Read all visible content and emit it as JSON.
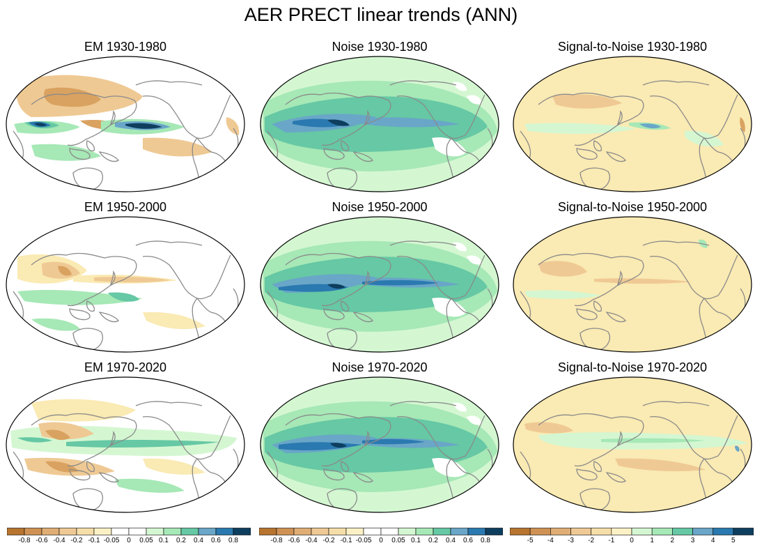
{
  "title": "AER PRECT linear trends (ANN)",
  "panels": [
    {
      "title": "EM 1930-1980",
      "kind": "em",
      "period": "1930-1980"
    },
    {
      "title": "Noise 1930-1980",
      "kind": "noise",
      "period": "1930-1980"
    },
    {
      "title": "Signal-to-Noise 1930-1980",
      "kind": "snr",
      "period": "1930-1980"
    },
    {
      "title": "EM 1950-2000",
      "kind": "em",
      "period": "1950-2000"
    },
    {
      "title": "Noise 1950-2000",
      "kind": "noise",
      "period": "1950-2000"
    },
    {
      "title": "Signal-to-Noise 1950-2000",
      "kind": "snr",
      "period": "1950-2000"
    },
    {
      "title": "EM 1970-2020",
      "kind": "em",
      "period": "1970-2020"
    },
    {
      "title": "Noise 1970-2020",
      "kind": "noise",
      "period": "1970-2020"
    },
    {
      "title": "Signal-to-Noise 1970-2020",
      "kind": "snr",
      "period": "1970-2020"
    }
  ],
  "colorbars": [
    {
      "labels": [
        "-0.8",
        "-0.6",
        "-0.4",
        "-0.2",
        "-0.1",
        "-0.05",
        "0",
        "0.05",
        "0.1",
        "0.2",
        "0.4",
        "0.6",
        "0.8"
      ],
      "colors": [
        "#b8742f",
        "#cf9254",
        "#e0ae74",
        "#efc994",
        "#f6dea8",
        "#fbf1c5",
        "#ffffff",
        "#ffffff",
        "#d4f7d2",
        "#a6e8b6",
        "#66c8a4",
        "#69a6c8",
        "#2a79b0",
        "#0e3e5e"
      ]
    },
    {
      "labels": [
        "-0.8",
        "-0.6",
        "-0.4",
        "-0.2",
        "-0.1",
        "-0.05",
        "0",
        "0.05",
        "0.1",
        "0.2",
        "0.4",
        "0.6",
        "0.8"
      ],
      "colors": [
        "#b8742f",
        "#cf9254",
        "#e0ae74",
        "#efc994",
        "#f6dea8",
        "#fbf1c5",
        "#ffffff",
        "#ffffff",
        "#d4f7d2",
        "#a6e8b6",
        "#66c8a4",
        "#69a6c8",
        "#2a79b0",
        "#0e3e5e"
      ]
    },
    {
      "labels": [
        "-5",
        "-4",
        "-3",
        "-2",
        "-1",
        "0",
        "1",
        "2",
        "3",
        "4",
        "5"
      ],
      "colors": [
        "#b8742f",
        "#cf9254",
        "#e0ae74",
        "#efc994",
        "#f6dea8",
        "#fbf1c5",
        "#d4f7d2",
        "#a6e8b6",
        "#66c8a4",
        "#69a6c8",
        "#2a79b0",
        "#0e3e5e"
      ]
    }
  ],
  "palette": {
    "brown_dark": "#b8742f",
    "brown": "#d9a260",
    "tan": "#efc994",
    "cream": "#faeab3",
    "mint": "#d4f7d2",
    "green": "#a6e8b6",
    "teal": "#66c8a4",
    "blue": "#69a6c8",
    "blue_dark": "#2a79b0",
    "navy": "#0e3e5e",
    "coast": "#8a8a8a"
  }
}
